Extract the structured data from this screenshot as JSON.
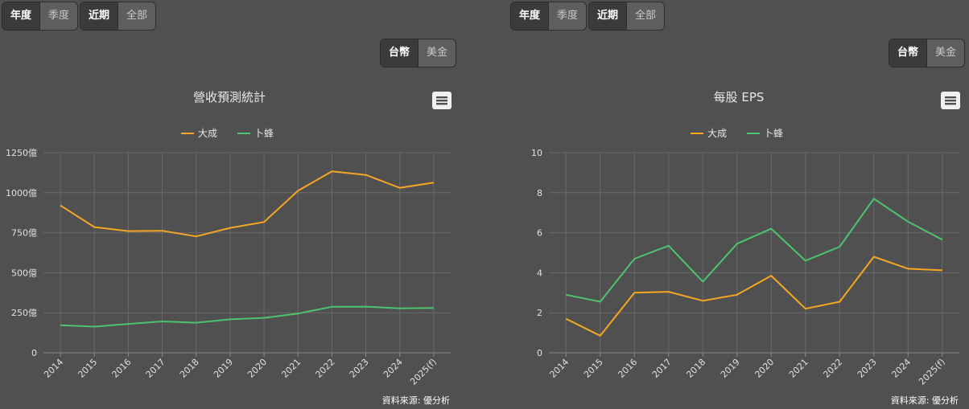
{
  "controls": {
    "period": [
      "年度",
      "季度"
    ],
    "range": [
      "近期",
      "全部"
    ],
    "currency": [
      "台幣",
      "美金"
    ]
  },
  "colors": {
    "orange": "#f5a623",
    "green": "#4cc46f"
  },
  "chart_data": [
    {
      "type": "line",
      "title": "營收預測統計",
      "menu_icon": "hamburger-menu-icon",
      "categories": [
        "2014",
        "2015",
        "2016",
        "2017",
        "2018",
        "2019",
        "2020",
        "2021",
        "2022",
        "2023",
        "2024",
        "2025(f)"
      ],
      "series": [
        {
          "name": "大成",
          "color": "#f5a623",
          "values": [
            920,
            785,
            760,
            762,
            727,
            780,
            817,
            1012,
            1133,
            1111,
            1030,
            1063
          ]
        },
        {
          "name": "卜蜂",
          "color": "#4cc46f",
          "values": [
            172,
            163,
            180,
            196,
            188,
            209,
            218,
            245,
            287,
            288,
            277,
            280
          ]
        }
      ],
      "yticks": [
        "0",
        "250億",
        "500億",
        "750億",
        "1000億",
        "1250億"
      ],
      "ylim": [
        0,
        1250
      ],
      "grid": true,
      "legend": "top-center",
      "source": "資料來源: 優分析"
    },
    {
      "type": "line",
      "title": "每股 EPS",
      "menu_icon": "hamburger-menu-icon",
      "categories": [
        "2014",
        "2015",
        "2016",
        "2017",
        "2018",
        "2019",
        "2020",
        "2021",
        "2022",
        "2023",
        "2024",
        "2025(f)"
      ],
      "series": [
        {
          "name": "大成",
          "color": "#f5a623",
          "values": [
            1.7,
            0.85,
            3.0,
            3.05,
            2.6,
            2.9,
            3.85,
            2.2,
            2.55,
            4.8,
            4.2,
            4.12
          ]
        },
        {
          "name": "卜蜂",
          "color": "#4cc46f",
          "values": [
            2.9,
            2.55,
            4.7,
            5.35,
            3.55,
            5.45,
            6.2,
            4.6,
            5.3,
            7.7,
            6.55,
            5.65
          ]
        }
      ],
      "yticks": [
        "0",
        "2",
        "4",
        "6",
        "8",
        "10"
      ],
      "ylim": [
        0,
        10
      ],
      "grid": true,
      "legend": "top-center",
      "source": "資料來源: 優分析"
    }
  ]
}
